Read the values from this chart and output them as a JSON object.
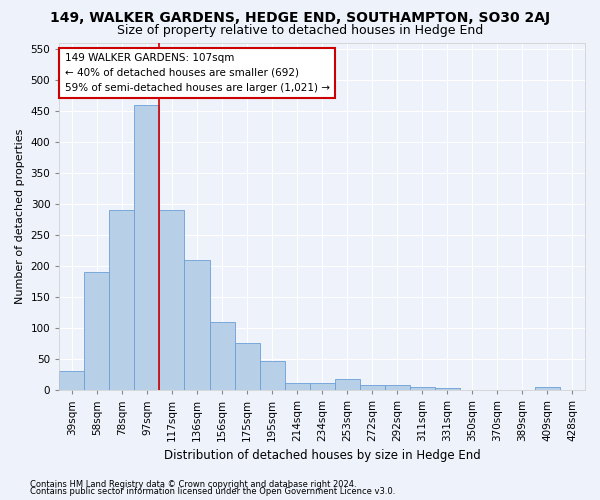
{
  "title": "149, WALKER GARDENS, HEDGE END, SOUTHAMPTON, SO30 2AJ",
  "subtitle": "Size of property relative to detached houses in Hedge End",
  "xlabel": "Distribution of detached houses by size in Hedge End",
  "ylabel": "Number of detached properties",
  "categories": [
    "39sqm",
    "58sqm",
    "78sqm",
    "97sqm",
    "117sqm",
    "136sqm",
    "156sqm",
    "175sqm",
    "195sqm",
    "214sqm",
    "234sqm",
    "253sqm",
    "272sqm",
    "292sqm",
    "311sqm",
    "331sqm",
    "350sqm",
    "370sqm",
    "389sqm",
    "409sqm",
    "428sqm"
  ],
  "values": [
    30,
    190,
    290,
    460,
    290,
    210,
    110,
    75,
    47,
    12,
    12,
    18,
    8,
    8,
    5,
    4,
    0,
    0,
    0,
    5,
    0
  ],
  "bar_color": "#b8cfe8",
  "bar_edge_color": "#6a9fd8",
  "vline_x_index": 3,
  "vline_color": "#cc0000",
  "annotation_line1": "149 WALKER GARDENS: 107sqm",
  "annotation_line2": "← 40% of detached houses are smaller (692)",
  "annotation_line3": "59% of semi-detached houses are larger (1,021) →",
  "annotation_box_color": "#ffffff",
  "annotation_box_edge": "#cc0000",
  "ylim": [
    0,
    560
  ],
  "yticks": [
    0,
    50,
    100,
    150,
    200,
    250,
    300,
    350,
    400,
    450,
    500,
    550
  ],
  "footer1": "Contains HM Land Registry data © Crown copyright and database right 2024.",
  "footer2": "Contains public sector information licensed under the Open Government Licence v3.0.",
  "bg_color": "#eef2fa",
  "grid_color": "#ffffff",
  "title_fontsize": 10,
  "subtitle_fontsize": 9,
  "axis_fontsize": 8,
  "tick_fontsize": 7.5,
  "footer_fontsize": 6
}
